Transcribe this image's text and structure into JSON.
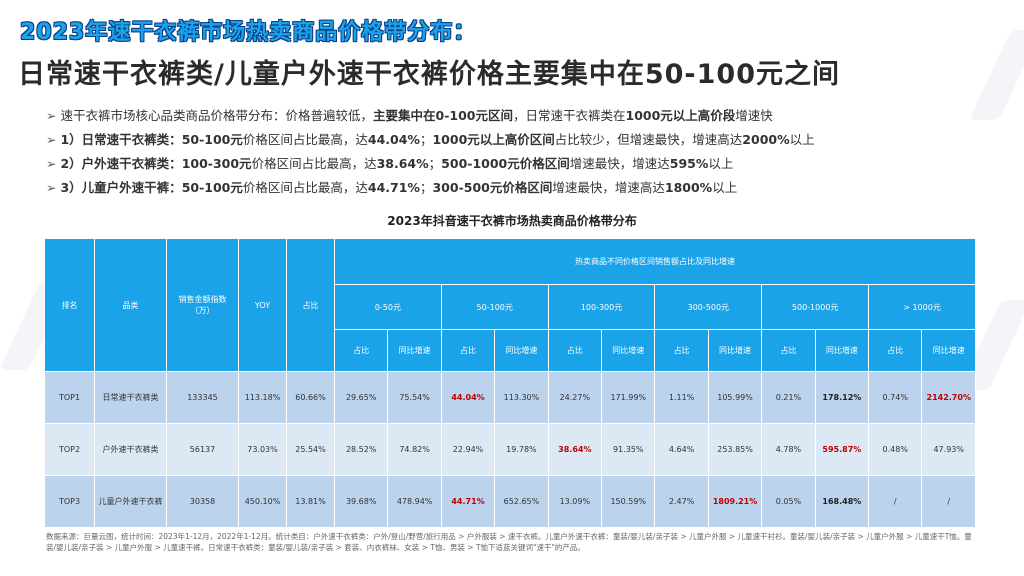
{
  "title1": "2023年速干衣裤市场热卖商品价格带分布：",
  "title2": "日常速干衣裤类/儿童户外速干衣裤价格主要集中在50-100元之间",
  "bullets": [
    {
      "segments": [
        {
          "t": "速干衣裤市场核心品类商品价格带分布：价格普遍较低，",
          "b": false
        },
        {
          "t": "主要集中在0-100元区间",
          "b": true
        },
        {
          "t": "，日常速干衣裤类在",
          "b": false
        },
        {
          "t": "1000元以上高价段",
          "b": true
        },
        {
          "t": "增速快",
          "b": false
        }
      ]
    },
    {
      "segments": [
        {
          "t": "1）日常速干衣裤类：",
          "b": true
        },
        {
          "t": "50-100元",
          "b": true
        },
        {
          "t": "价格区间占比最高，达",
          "b": false
        },
        {
          "t": "44.04%",
          "b": true
        },
        {
          "t": "；",
          "b": false
        },
        {
          "t": "1000元以上高价区间",
          "b": true
        },
        {
          "t": "占比较少，但增速最快，增速高达",
          "b": false
        },
        {
          "t": "2000%",
          "b": true
        },
        {
          "t": "以上",
          "b": false
        }
      ]
    },
    {
      "segments": [
        {
          "t": "2）户外速干衣裤类：",
          "b": true
        },
        {
          "t": "100-300元",
          "b": true
        },
        {
          "t": "价格区间占比最高，达",
          "b": false
        },
        {
          "t": "38.64%",
          "b": true
        },
        {
          "t": "；",
          "b": false
        },
        {
          "t": "500-1000元价格区间",
          "b": true
        },
        {
          "t": "增速最快，增速达",
          "b": false
        },
        {
          "t": "595%",
          "b": true
        },
        {
          "t": "以上",
          "b": false
        }
      ]
    },
    {
      "segments": [
        {
          "t": "3）儿童户外速干裤：",
          "b": true
        },
        {
          "t": "50-100元",
          "b": true
        },
        {
          "t": "价格区间占比最高，达",
          "b": false
        },
        {
          "t": "44.71%",
          "b": true
        },
        {
          "t": "；",
          "b": false
        },
        {
          "t": "300-500元价格区间",
          "b": true
        },
        {
          "t": "增速最快，增速高达",
          "b": false
        },
        {
          "t": "1800%",
          "b": true
        },
        {
          "t": "以上",
          "b": false
        }
      ]
    }
  ],
  "table": {
    "title": "2023年抖音速干衣裤市场热卖商品价格带分布",
    "headers": {
      "rank": "排名",
      "category": "品类",
      "sales_index": "销售金额指数（万）",
      "yoy": "YOY",
      "share": "占比",
      "group": "热卖商品不同价格区间销售额占比及同比增速",
      "price_bands": [
        "0-50元",
        "50-100元",
        "100-300元",
        "300-500元",
        "500-1000元",
        "> 1000元"
      ],
      "sub_share": "占比",
      "sub_growth": "同比增速"
    },
    "rows": [
      {
        "rank": "TOP1",
        "category": "日常速干衣裤类",
        "sales_index": "133345",
        "yoy": "113.18%",
        "share": "60.66%",
        "bands": [
          [
            "29.65%",
            "75.54%"
          ],
          [
            "44.04%",
            "113.30%"
          ],
          [
            "24.27%",
            "171.99%"
          ],
          [
            "1.11%",
            "105.99%"
          ],
          [
            "0.21%",
            "178.12%"
          ],
          [
            "0.74%",
            "2142.70%"
          ]
        ]
      },
      {
        "rank": "TOP2",
        "category": "户外速干衣裤类",
        "sales_index": "56137",
        "yoy": "73.03%",
        "share": "25.54%",
        "bands": [
          [
            "28.52%",
            "74.82%"
          ],
          [
            "22.94%",
            "19.78%"
          ],
          [
            "38.64%",
            "91.35%"
          ],
          [
            "4.64%",
            "253.85%"
          ],
          [
            "4.78%",
            "595.87%"
          ],
          [
            "0.48%",
            "47.93%"
          ]
        ]
      },
      {
        "rank": "TOP3",
        "category": "儿童户外速干衣裤",
        "sales_index": "30358",
        "yoy": "450.10%",
        "share": "13.81%",
        "bands": [
          [
            "39.68%",
            "478.94%"
          ],
          [
            "44.71%",
            "652.65%"
          ],
          [
            "13.09%",
            "150.59%"
          ],
          [
            "2.47%",
            "1809.21%"
          ],
          [
            "0.05%",
            "168.48%"
          ],
          [
            "/",
            "/"
          ]
        ]
      }
    ]
  },
  "footer": "数据来源：巨量云图，统计时间：2023年1-12月，2022年1-12月。统计类目：户外速干衣裤类：户外/登山/野营/旅行用品 > 户外服装 > 速干衣裤。儿童户外速干衣裤：童装/婴儿装/亲子装 > 儿童户外服 > 儿童速干衬衫。童装/婴儿装/亲子装 > 儿童户外服 > 儿童速干T恤。童装/婴儿装/亲子装 > 儿童户外服 > 儿童速干裤。日常速干衣裤类：童装/婴儿装/亲子装 > 套装、内衣裤袜、女装 > T恤、男装 > T恤下适蓝关键词\"速干\"的产品。",
  "colors": {
    "accent": "#1aa3e8",
    "title_outline": "#0b3c86",
    "highlight": "#c00000",
    "row_dark": "#bcd3ed",
    "row_light": "#dde8f5"
  }
}
